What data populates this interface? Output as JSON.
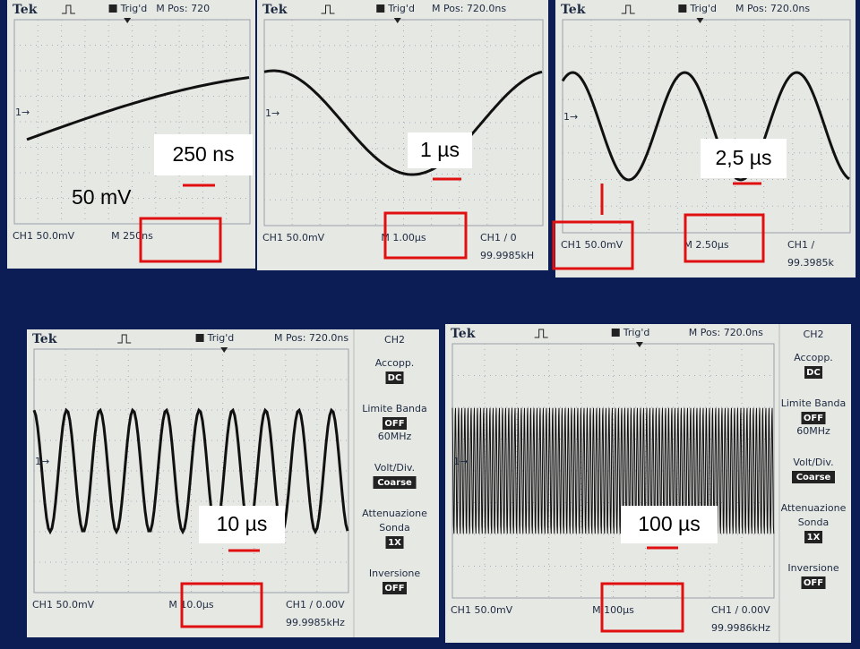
{
  "screens": [
    {
      "header": {
        "brand": "Tek",
        "trigger": "Trig'd",
        "position": "M Pos: 720"
      },
      "footer": {
        "channel": "CH1 50.0mV",
        "timebase": "M 250ns"
      },
      "annotations": [
        "250 ns",
        "50 mV"
      ]
    },
    {
      "header": {
        "brand": "Tek",
        "trigger": "Trig'd",
        "position": "M Pos: 720.0ns"
      },
      "footer": {
        "channel": "CH1 50.0mV",
        "timebase": "M 1.00µs",
        "trigger_level": "CH1 / 0",
        "frequency": "99.9985kH"
      },
      "annotations": [
        "1 µs"
      ]
    },
    {
      "header": {
        "brand": "Tek",
        "trigger": "Trig'd",
        "position": "M Pos: 720.0ns"
      },
      "footer": {
        "channel": "CH1 50.0mV",
        "timebase": "M 2.50µs",
        "trigger_level": "CH1 /",
        "frequency": "99.3985k"
      },
      "annotations": [
        "2,5 µs"
      ]
    },
    {
      "header": {
        "brand": "Tek",
        "trigger": "Trig'd",
        "position": "M Pos: 720.0ns"
      },
      "footer": {
        "channel": "CH1 50.0mV",
        "timebase": "M 10.0µs",
        "trigger_level": "CH1 / 0.00V",
        "frequency": "99.9985kHz"
      },
      "menu": {
        "title": "CH2",
        "items": [
          {
            "label": "Accopp.",
            "value": "DC"
          },
          {
            "label": "Limite Banda",
            "value": "OFF",
            "extra": "60MHz"
          },
          {
            "label": "Volt/Div.",
            "value": "Coarse"
          },
          {
            "label": "Attenuazione",
            "sub": "Sonda",
            "value": "1X"
          },
          {
            "label": "Inversione",
            "value": "OFF"
          }
        ]
      },
      "annotations": [
        "10 µs"
      ]
    },
    {
      "header": {
        "brand": "Tek",
        "trigger": "Trig'd",
        "position": "M Pos: 720.0ns"
      },
      "footer": {
        "channel": "CH1 50.0mV",
        "timebase": "M 100µs",
        "trigger_level": "CH1 / 0.00V",
        "frequency": "99.9986kHz"
      },
      "menu": {
        "title": "CH2",
        "items": [
          {
            "label": "Accopp.",
            "value": "DC"
          },
          {
            "label": "Limite Banda",
            "value": "OFF",
            "extra": "60MHz"
          },
          {
            "label": "Volt/Div.",
            "value": "Coarse"
          },
          {
            "label": "Attenuazione",
            "sub": "Sonda",
            "value": "1X"
          },
          {
            "label": "Inversione",
            "value": "OFF"
          }
        ]
      },
      "annotations": [
        "100 µs"
      ]
    }
  ]
}
